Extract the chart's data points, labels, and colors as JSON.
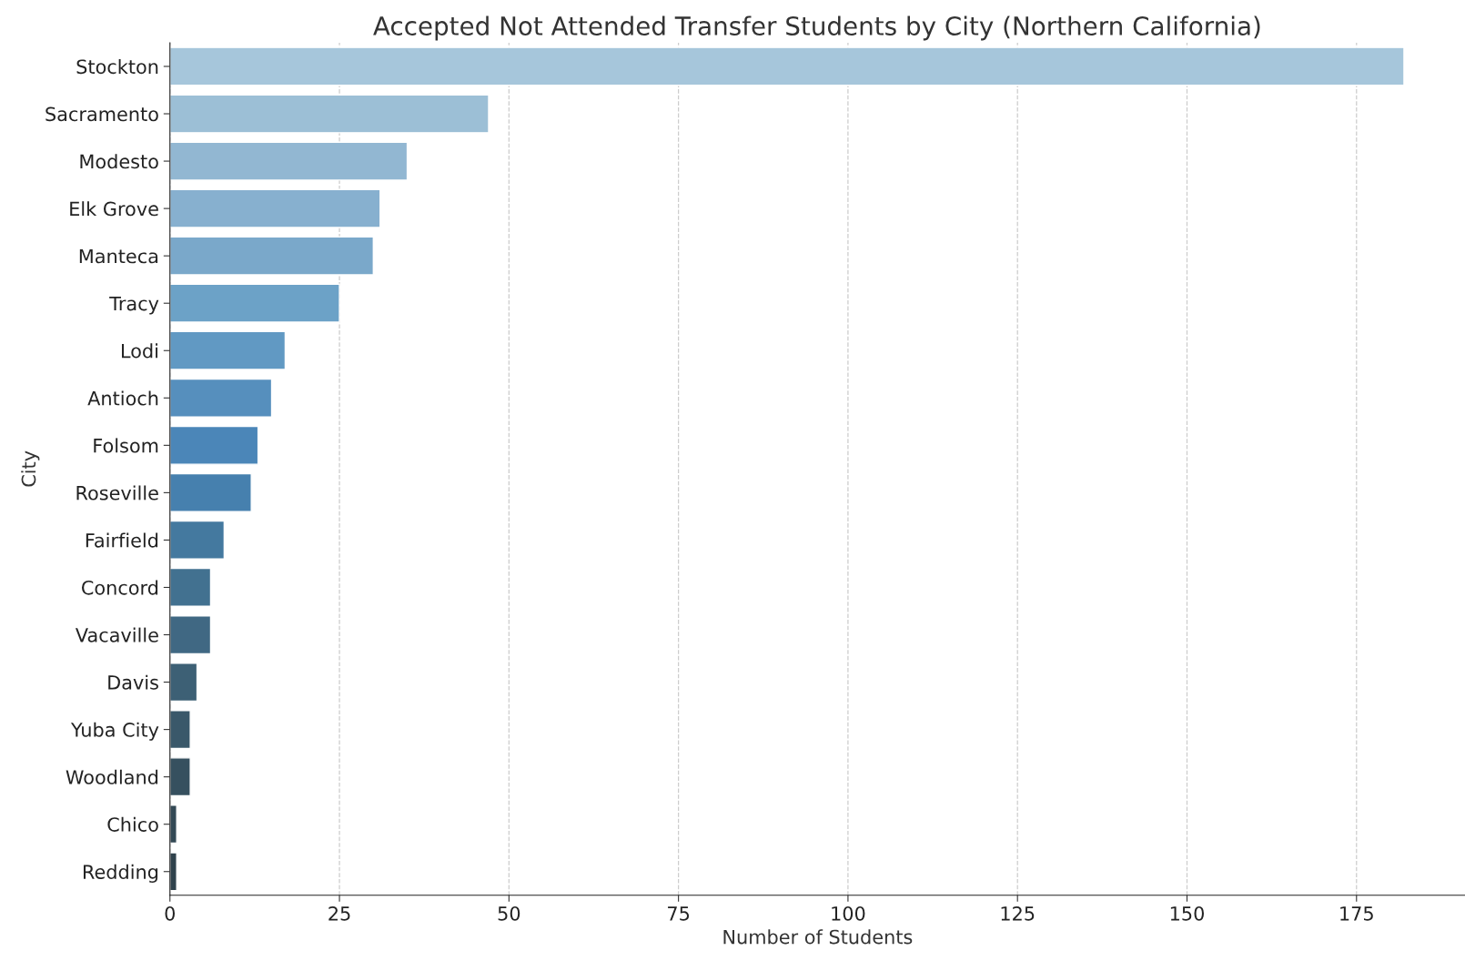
{
  "chart_data": {
    "type": "bar",
    "orientation": "horizontal",
    "title": "Accepted Not Attended Transfer Students by City (Northern California)",
    "xlabel": "Number of Students",
    "ylabel": "City",
    "categories": [
      "Stockton",
      "Sacramento",
      "Modesto",
      "Elk Grove",
      "Manteca",
      "Tracy",
      "Lodi",
      "Antioch",
      "Folsom",
      "Roseville",
      "Fairfield",
      "Concord",
      "Vacaville",
      "Davis",
      "Yuba City",
      "Woodland",
      "Chico",
      "Redding"
    ],
    "values": [
      182,
      47,
      35,
      31,
      30,
      25,
      17,
      15,
      13,
      12,
      8,
      6,
      6,
      4,
      3,
      3,
      1,
      1
    ],
    "colors": [
      "#a6c6db",
      "#9cbfd6",
      "#92b7d2",
      "#87b0cf",
      "#7aa8ca",
      "#6ca2c7",
      "#6199c3",
      "#568fbd",
      "#4b86b8",
      "#4680ae",
      "#44799f",
      "#427190",
      "#406883",
      "#3d6075",
      "#3a586a",
      "#36505f",
      "#334955",
      "#2f424c"
    ],
    "xlim": [
      0,
      191
    ],
    "xticks": [
      0,
      25,
      50,
      75,
      100,
      125,
      150,
      175
    ],
    "grid": "x"
  }
}
